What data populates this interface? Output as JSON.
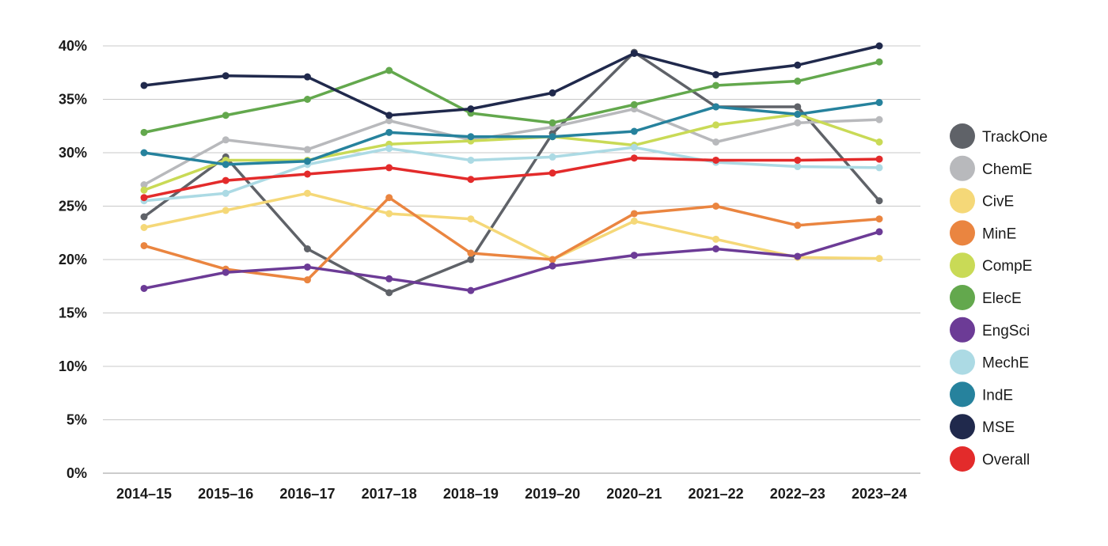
{
  "chart_data": {
    "type": "line",
    "title": "",
    "xlabel": "",
    "ylabel": "",
    "categories": [
      "2014–15",
      "2015–16",
      "2016–17",
      "2017–18",
      "2018–19",
      "2019–20",
      "2020–21",
      "2021–22",
      "2022–23",
      "2023–24"
    ],
    "ylim": [
      0,
      40
    ],
    "yticks": [
      0,
      5,
      10,
      15,
      20,
      25,
      30,
      35,
      40
    ],
    "ytick_labels": [
      "0%",
      "5%",
      "10%",
      "15%",
      "20%",
      "25%",
      "30%",
      "35%",
      "40%"
    ],
    "grid": "horizontal",
    "legend_position": "right",
    "series": [
      {
        "name": "TrackOne",
        "color": "#5f6268",
        "values": [
          24.0,
          29.6,
          21.0,
          16.9,
          20.0,
          31.8,
          39.4,
          34.3,
          34.3,
          25.5
        ]
      },
      {
        "name": "ChemE",
        "color": "#b8b9bc",
        "values": [
          27.0,
          31.2,
          30.3,
          33.0,
          31.2,
          32.4,
          34.1,
          31.0,
          32.8,
          33.1
        ]
      },
      {
        "name": "CivE",
        "color": "#f5d878",
        "values": [
          23.0,
          24.6,
          26.2,
          24.3,
          23.8,
          20.0,
          23.6,
          21.9,
          20.2,
          20.1
        ]
      },
      {
        "name": "MinE",
        "color": "#ea8540",
        "values": [
          21.3,
          19.1,
          18.1,
          25.8,
          20.6,
          20.0,
          24.3,
          25.0,
          23.2,
          23.8
        ]
      },
      {
        "name": "CompE",
        "color": "#c9da56",
        "values": [
          26.5,
          29.3,
          29.3,
          30.8,
          31.1,
          31.5,
          30.7,
          32.6,
          33.6,
          31.0
        ]
      },
      {
        "name": "ElecE",
        "color": "#63a84d",
        "values": [
          31.9,
          33.5,
          35.0,
          37.7,
          33.7,
          32.8,
          34.5,
          36.3,
          36.7,
          38.5
        ]
      },
      {
        "name": "EngSci",
        "color": "#6c3b96",
        "values": [
          17.3,
          18.8,
          19.3,
          18.2,
          17.1,
          19.4,
          20.4,
          21.0,
          20.3,
          22.6
        ]
      },
      {
        "name": "MechE",
        "color": "#acdae4",
        "values": [
          25.5,
          26.2,
          28.9,
          30.4,
          29.3,
          29.6,
          30.5,
          29.1,
          28.7,
          28.6
        ]
      },
      {
        "name": "IndE",
        "color": "#26829d",
        "values": [
          30.0,
          28.9,
          29.2,
          31.9,
          31.5,
          31.5,
          32.0,
          34.3,
          33.6,
          34.7
        ]
      },
      {
        "name": "MSE",
        "color": "#20294c",
        "values": [
          36.3,
          37.2,
          37.1,
          33.5,
          34.1,
          35.6,
          39.3,
          37.3,
          38.2,
          40.0
        ]
      },
      {
        "name": "Overall",
        "color": "#e32b2b",
        "values": [
          25.8,
          27.4,
          28.0,
          28.6,
          27.5,
          28.1,
          29.5,
          29.3,
          29.3,
          29.4
        ]
      }
    ]
  }
}
